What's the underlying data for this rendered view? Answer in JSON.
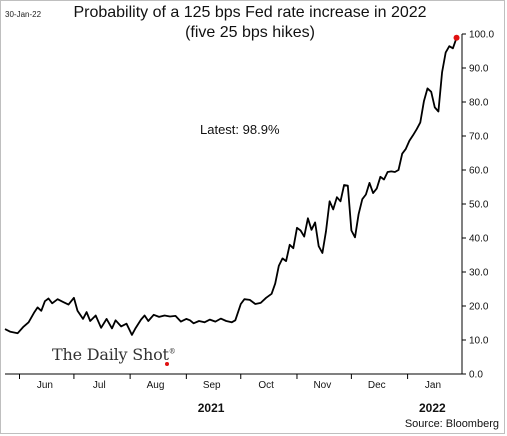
{
  "header": {
    "date_stamp": "30-Jan-22",
    "title_line1": "Probability of a 125 bps Fed rate increase in 2022",
    "title_line2": "(five 25 bps hikes)"
  },
  "footer": {
    "source": "Source: Bloomberg",
    "brand": "The Daily Shot",
    "brand_mark": "®"
  },
  "colors": {
    "line": "#000000",
    "marker": "#e01010",
    "axis": "#000000"
  },
  "chart_data": {
    "type": "line",
    "title": "Probability of a 125 bps Fed rate increase in 2022",
    "subtitle": "(five 25 bps hikes)",
    "annotation": "Latest:  98.9%",
    "xlabel": "",
    "ylabel": "",
    "y_axis_side": "right",
    "ylim": [
      0,
      100
    ],
    "yticks": [
      0,
      10,
      20,
      30,
      40,
      50,
      60,
      70,
      80,
      90,
      100
    ],
    "ytick_labels": [
      "0.0",
      "10.0",
      "20.0",
      "30.0",
      "40.0",
      "50.0",
      "60.0",
      "70.0",
      "80.0",
      "90.0",
      "100.0"
    ],
    "xlim": [
      "2021-05-24",
      "2022-01-31"
    ],
    "x_month_labels": [
      {
        "label": "Jun",
        "at": "2021-06-15"
      },
      {
        "label": "Jul",
        "at": "2021-07-15"
      },
      {
        "label": "Aug",
        "at": "2021-08-15"
      },
      {
        "label": "Sep",
        "at": "2021-09-15"
      },
      {
        "label": "Oct",
        "at": "2021-10-15"
      },
      {
        "label": "Nov",
        "at": "2021-11-15"
      },
      {
        "label": "Dec",
        "at": "2021-12-15"
      },
      {
        "label": "Jan",
        "at": "2022-01-15"
      }
    ],
    "x_month_boundaries": [
      "2021-06-01",
      "2021-07-01",
      "2021-08-01",
      "2021-09-01",
      "2021-10-01",
      "2021-11-01",
      "2021-12-01",
      "2022-01-01"
    ],
    "year_labels": [
      {
        "label": "2021",
        "at": "2021-09-15"
      },
      {
        "label": "2022",
        "at": "2022-01-15"
      }
    ],
    "grid": false,
    "legend": "none",
    "series": [
      {
        "points": [
          [
            "2021-05-24",
            13.2
          ],
          [
            "2021-05-27",
            12.4
          ],
          [
            "2021-05-31",
            12.0
          ],
          [
            "2021-06-03",
            13.8
          ],
          [
            "2021-06-06",
            15.2
          ],
          [
            "2021-06-09",
            18.0
          ],
          [
            "2021-06-11",
            19.6
          ],
          [
            "2021-06-13",
            18.6
          ],
          [
            "2021-06-15",
            21.4
          ],
          [
            "2021-06-17",
            22.2
          ],
          [
            "2021-06-19",
            20.8
          ],
          [
            "2021-06-22",
            22.0
          ],
          [
            "2021-06-25",
            21.2
          ],
          [
            "2021-06-28",
            20.4
          ],
          [
            "2021-07-01",
            22.4
          ],
          [
            "2021-07-03",
            18.6
          ],
          [
            "2021-07-06",
            16.2
          ],
          [
            "2021-07-08",
            18.2
          ],
          [
            "2021-07-10",
            15.6
          ],
          [
            "2021-07-13",
            17.2
          ],
          [
            "2021-07-16",
            13.6
          ],
          [
            "2021-07-19",
            16.2
          ],
          [
            "2021-07-22",
            13.4
          ],
          [
            "2021-07-24",
            15.8
          ],
          [
            "2021-07-27",
            14.0
          ],
          [
            "2021-07-30",
            14.8
          ],
          [
            "2021-08-02",
            11.5
          ],
          [
            "2021-08-04",
            13.5
          ],
          [
            "2021-08-07",
            16.0
          ],
          [
            "2021-08-09",
            17.2
          ],
          [
            "2021-08-11",
            15.6
          ],
          [
            "2021-08-14",
            17.4
          ],
          [
            "2021-08-17",
            16.8
          ],
          [
            "2021-08-20",
            17.2
          ],
          [
            "2021-08-23",
            16.9
          ],
          [
            "2021-08-26",
            17.1
          ],
          [
            "2021-08-29",
            15.4
          ],
          [
            "2021-09-01",
            16.2
          ],
          [
            "2021-09-03",
            15.8
          ],
          [
            "2021-09-05",
            14.9
          ],
          [
            "2021-09-08",
            15.6
          ],
          [
            "2021-09-11",
            15.2
          ],
          [
            "2021-09-14",
            16.0
          ],
          [
            "2021-09-17",
            15.4
          ],
          [
            "2021-09-20",
            16.3
          ],
          [
            "2021-09-23",
            15.6
          ],
          [
            "2021-09-26",
            15.2
          ],
          [
            "2021-09-28",
            15.8
          ],
          [
            "2021-10-01",
            20.6
          ],
          [
            "2021-10-03",
            22.0
          ],
          [
            "2021-10-06",
            21.8
          ],
          [
            "2021-10-09",
            20.6
          ],
          [
            "2021-10-12",
            20.9
          ],
          [
            "2021-10-15",
            22.4
          ],
          [
            "2021-10-18",
            23.6
          ],
          [
            "2021-10-20",
            26.6
          ],
          [
            "2021-10-22",
            31.8
          ],
          [
            "2021-10-24",
            34.0
          ],
          [
            "2021-10-26",
            33.2
          ],
          [
            "2021-10-28",
            38.0
          ],
          [
            "2021-10-30",
            37.0
          ],
          [
            "2021-11-01",
            43.0
          ],
          [
            "2021-11-03",
            42.2
          ],
          [
            "2021-11-05",
            40.4
          ],
          [
            "2021-11-07",
            45.8
          ],
          [
            "2021-11-09",
            42.4
          ],
          [
            "2021-11-11",
            44.6
          ],
          [
            "2021-11-13",
            37.6
          ],
          [
            "2021-11-15",
            35.6
          ],
          [
            "2021-11-17",
            42.0
          ],
          [
            "2021-11-19",
            50.8
          ],
          [
            "2021-11-21",
            48.4
          ],
          [
            "2021-11-23",
            52.0
          ],
          [
            "2021-11-25",
            50.8
          ],
          [
            "2021-11-27",
            55.6
          ],
          [
            "2021-11-29",
            55.4
          ],
          [
            "2021-12-01",
            42.2
          ],
          [
            "2021-12-03",
            40.2
          ],
          [
            "2021-12-05",
            47.0
          ],
          [
            "2021-12-07",
            51.4
          ],
          [
            "2021-12-09",
            52.8
          ],
          [
            "2021-12-11",
            56.2
          ],
          [
            "2021-12-13",
            53.2
          ],
          [
            "2021-12-15",
            54.6
          ],
          [
            "2021-12-17",
            58.0
          ],
          [
            "2021-12-19",
            57.2
          ],
          [
            "2021-12-21",
            59.4
          ],
          [
            "2021-12-23",
            59.6
          ],
          [
            "2021-12-25",
            59.4
          ],
          [
            "2021-12-27",
            60.0
          ],
          [
            "2021-12-29",
            64.8
          ],
          [
            "2021-12-31",
            66.2
          ],
          [
            "2022-01-02",
            68.6
          ],
          [
            "2022-01-04",
            70.2
          ],
          [
            "2022-01-06",
            72.0
          ],
          [
            "2022-01-08",
            74.0
          ],
          [
            "2022-01-10",
            80.2
          ],
          [
            "2022-01-12",
            84.0
          ],
          [
            "2022-01-14",
            83.0
          ],
          [
            "2022-01-16",
            78.4
          ],
          [
            "2022-01-18",
            77.2
          ],
          [
            "2022-01-20",
            88.8
          ],
          [
            "2022-01-22",
            94.6
          ],
          [
            "2022-01-24",
            96.4
          ],
          [
            "2022-01-26",
            95.8
          ],
          [
            "2022-01-28",
            98.9
          ]
        ],
        "latest": [
          "2022-01-28",
          98.9
        ]
      }
    ]
  }
}
